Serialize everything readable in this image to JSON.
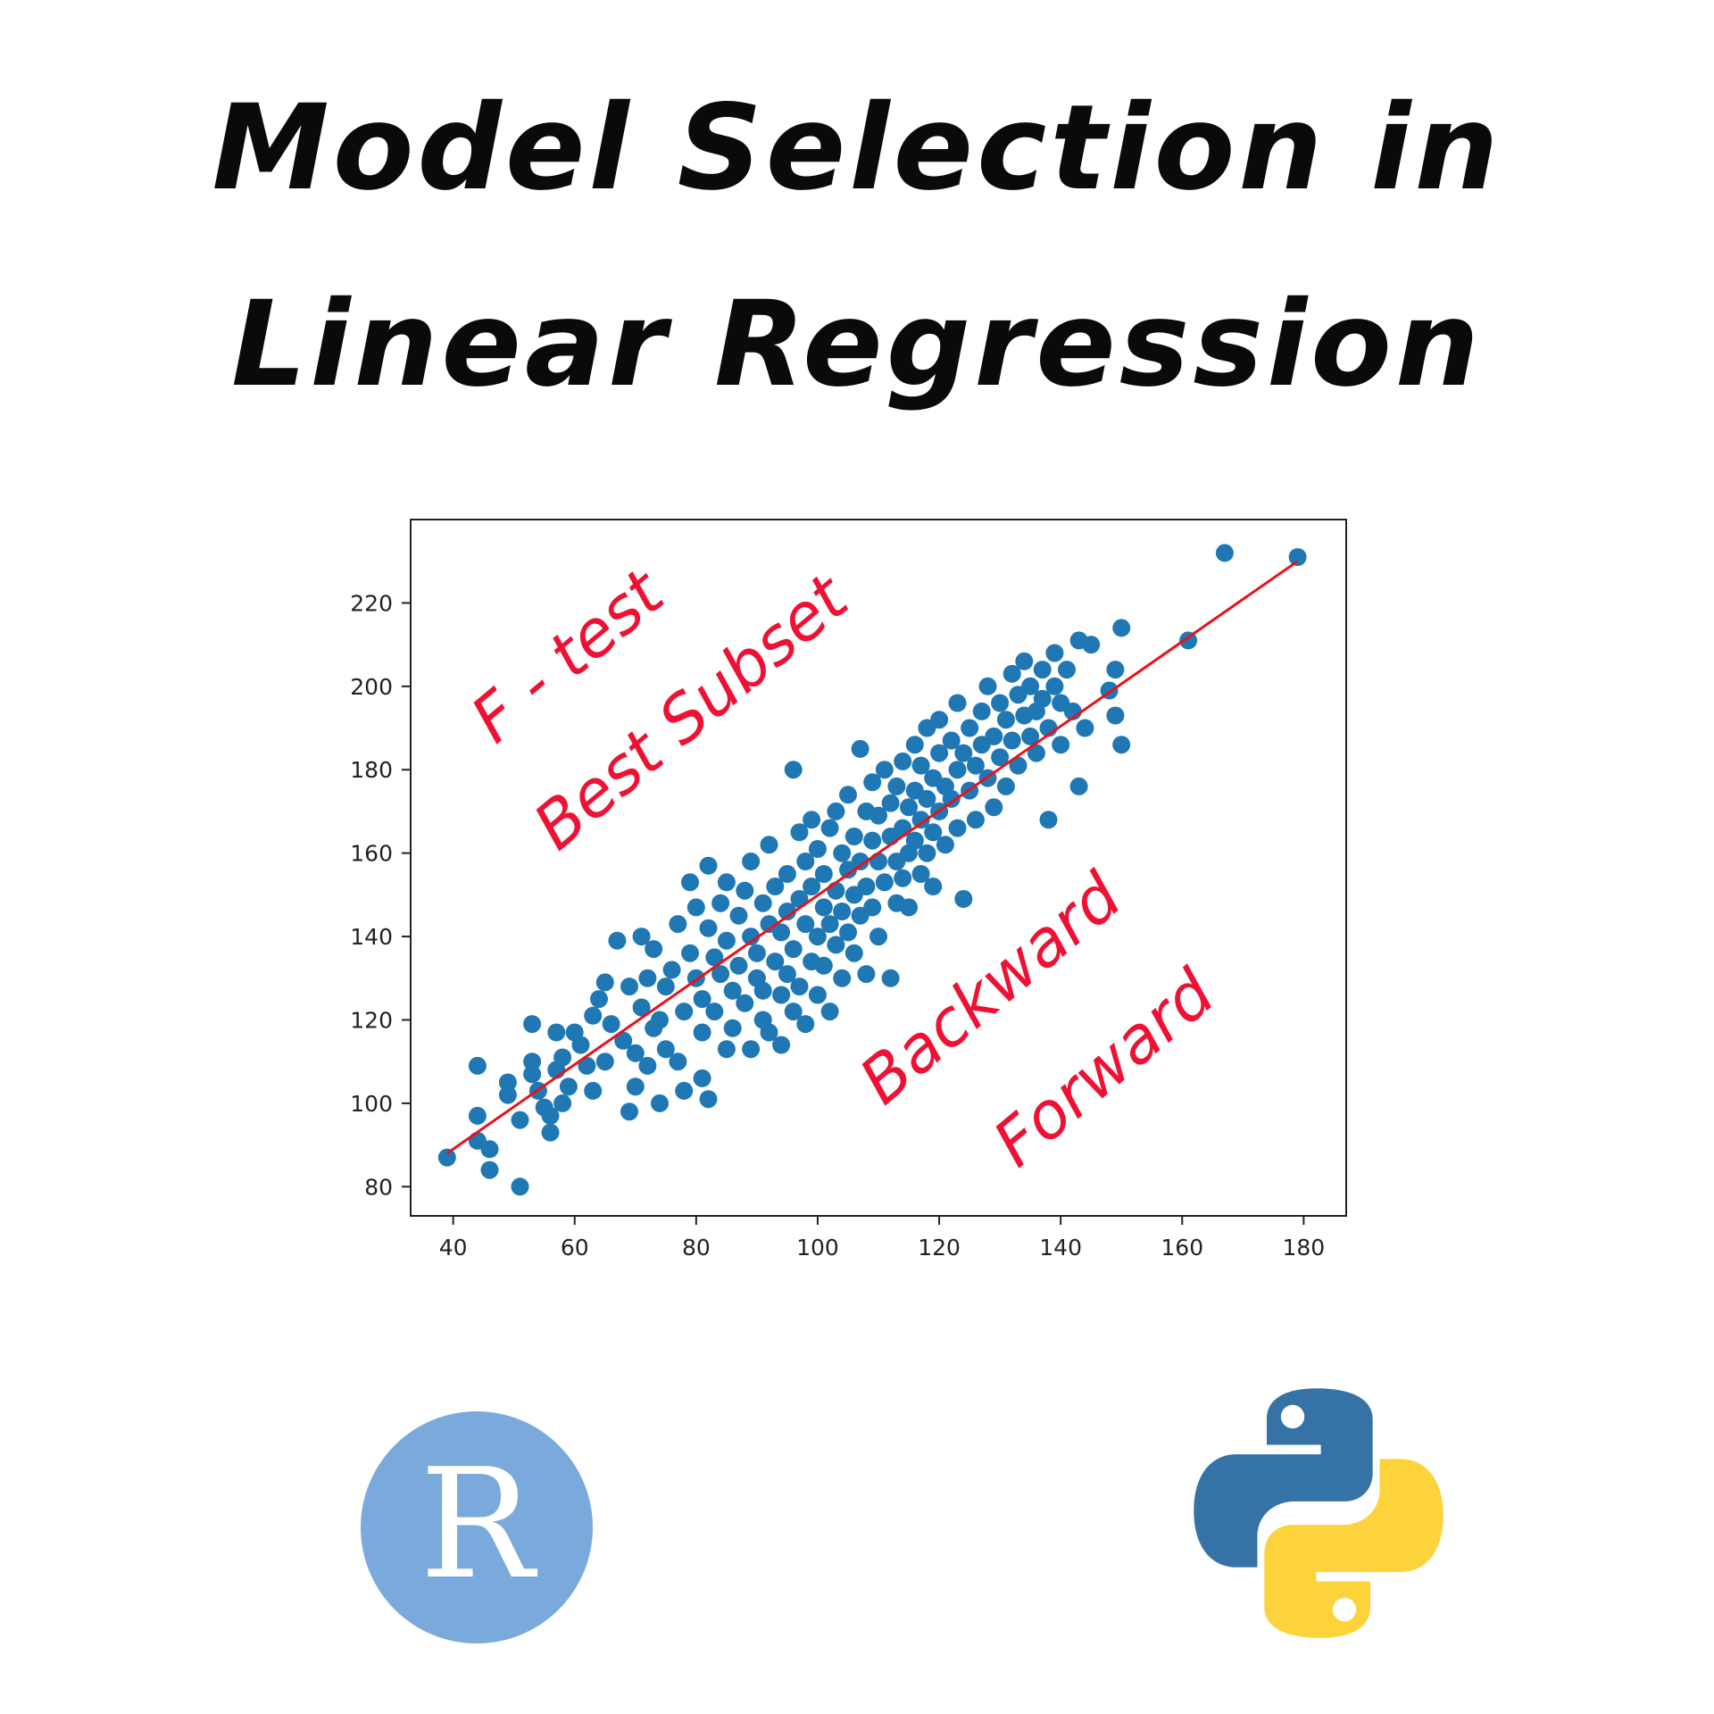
{
  "title": {
    "line1": "Model Selection in",
    "line2": "Linear Regression"
  },
  "colors": {
    "points": "#1f77b4",
    "fit_line": "#e8131a",
    "annotation": "#ee1133",
    "r_logo_bg": "#7aa9db",
    "python_blue": "#3572a5",
    "python_yellow": "#fcd33b"
  },
  "chart_data": {
    "type": "scatter",
    "xlim": [
      33,
      187
    ],
    "ylim": [
      73,
      240
    ],
    "xticks": [
      40,
      60,
      80,
      100,
      120,
      140,
      160,
      180
    ],
    "yticks": [
      80,
      100,
      120,
      140,
      160,
      180,
      200,
      220
    ],
    "grid": false,
    "fit_line": {
      "x": [
        39,
        179
      ],
      "y": [
        88,
        230
      ]
    },
    "points": [
      [
        39,
        87
      ],
      [
        44,
        109
      ],
      [
        44,
        97
      ],
      [
        44,
        91
      ],
      [
        46,
        89
      ],
      [
        46,
        84
      ],
      [
        49,
        105
      ],
      [
        49,
        102
      ],
      [
        51,
        96
      ],
      [
        51,
        80
      ],
      [
        53,
        119
      ],
      [
        53,
        110
      ],
      [
        53,
        107
      ],
      [
        54,
        103
      ],
      [
        55,
        99
      ],
      [
        56,
        97
      ],
      [
        56,
        93
      ],
      [
        57,
        108
      ],
      [
        57,
        117
      ],
      [
        58,
        111
      ],
      [
        58,
        100
      ],
      [
        59,
        104
      ],
      [
        60,
        117
      ],
      [
        61,
        114
      ],
      [
        62,
        109
      ],
      [
        63,
        121
      ],
      [
        63,
        103
      ],
      [
        64,
        125
      ],
      [
        65,
        129
      ],
      [
        65,
        110
      ],
      [
        66,
        119
      ],
      [
        67,
        139
      ],
      [
        68,
        115
      ],
      [
        69,
        98
      ],
      [
        69,
        128
      ],
      [
        70,
        112
      ],
      [
        70,
        104
      ],
      [
        71,
        123
      ],
      [
        71,
        140
      ],
      [
        72,
        109
      ],
      [
        72,
        130
      ],
      [
        73,
        118
      ],
      [
        73,
        137
      ],
      [
        74,
        100
      ],
      [
        74,
        120
      ],
      [
        75,
        128
      ],
      [
        75,
        113
      ],
      [
        76,
        132
      ],
      [
        77,
        110
      ],
      [
        77,
        143
      ],
      [
        78,
        103
      ],
      [
        78,
        122
      ],
      [
        79,
        153
      ],
      [
        79,
        136
      ],
      [
        80,
        147
      ],
      [
        80,
        130
      ],
      [
        81,
        106
      ],
      [
        81,
        125
      ],
      [
        81,
        117
      ],
      [
        82,
        157
      ],
      [
        82,
        142
      ],
      [
        82,
        101
      ],
      [
        83,
        135
      ],
      [
        83,
        122
      ],
      [
        84,
        148
      ],
      [
        84,
        131
      ],
      [
        85,
        113
      ],
      [
        85,
        153
      ],
      [
        85,
        139
      ],
      [
        86,
        127
      ],
      [
        86,
        118
      ],
      [
        87,
        145
      ],
      [
        87,
        133
      ],
      [
        88,
        151
      ],
      [
        88,
        124
      ],
      [
        89,
        113
      ],
      [
        89,
        140
      ],
      [
        89,
        158
      ],
      [
        90,
        130
      ],
      [
        90,
        136
      ],
      [
        91,
        148
      ],
      [
        91,
        120
      ],
      [
        91,
        127
      ],
      [
        92,
        162
      ],
      [
        92,
        143
      ],
      [
        92,
        117
      ],
      [
        93,
        134
      ],
      [
        93,
        152
      ],
      [
        94,
        126
      ],
      [
        94,
        141
      ],
      [
        94,
        114
      ],
      [
        95,
        155
      ],
      [
        95,
        146
      ],
      [
        95,
        131
      ],
      [
        96,
        122
      ],
      [
        96,
        180
      ],
      [
        96,
        137
      ],
      [
        97,
        165
      ],
      [
        97,
        149
      ],
      [
        97,
        128
      ],
      [
        98,
        143
      ],
      [
        98,
        158
      ],
      [
        98,
        119
      ],
      [
        99,
        134
      ],
      [
        99,
        152
      ],
      [
        99,
        168
      ],
      [
        100,
        140
      ],
      [
        100,
        126
      ],
      [
        100,
        161
      ],
      [
        101,
        147
      ],
      [
        101,
        155
      ],
      [
        101,
        133
      ],
      [
        102,
        166
      ],
      [
        102,
        143
      ],
      [
        102,
        122
      ],
      [
        103,
        151
      ],
      [
        103,
        138
      ],
      [
        103,
        170
      ],
      [
        104,
        160
      ],
      [
        104,
        146
      ],
      [
        104,
        130
      ],
      [
        105,
        156
      ],
      [
        105,
        174
      ],
      [
        105,
        141
      ],
      [
        106,
        164
      ],
      [
        106,
        150
      ],
      [
        106,
        136
      ],
      [
        107,
        185
      ],
      [
        107,
        158
      ],
      [
        107,
        145
      ],
      [
        108,
        170
      ],
      [
        108,
        152
      ],
      [
        108,
        131
      ],
      [
        109,
        163
      ],
      [
        109,
        177
      ],
      [
        109,
        147
      ],
      [
        110,
        158
      ],
      [
        110,
        140
      ],
      [
        110,
        169
      ],
      [
        111,
        153
      ],
      [
        111,
        180
      ],
      [
        112,
        164
      ],
      [
        112,
        172
      ],
      [
        112,
        130
      ],
      [
        113,
        158
      ],
      [
        113,
        148
      ],
      [
        113,
        176
      ],
      [
        114,
        166
      ],
      [
        114,
        182
      ],
      [
        114,
        154
      ],
      [
        115,
        171
      ],
      [
        115,
        160
      ],
      [
        115,
        147
      ],
      [
        116,
        186
      ],
      [
        116,
        175
      ],
      [
        116,
        163
      ],
      [
        117,
        168
      ],
      [
        117,
        155
      ],
      [
        117,
        181
      ],
      [
        118,
        173
      ],
      [
        118,
        190
      ],
      [
        118,
        160
      ],
      [
        119,
        178
      ],
      [
        119,
        165
      ],
      [
        119,
        152
      ],
      [
        120,
        184
      ],
      [
        120,
        170
      ],
      [
        120,
        192
      ],
      [
        121,
        176
      ],
      [
        121,
        162
      ],
      [
        122,
        187
      ],
      [
        122,
        173
      ],
      [
        123,
        196
      ],
      [
        123,
        180
      ],
      [
        123,
        166
      ],
      [
        124,
        184
      ],
      [
        124,
        149
      ],
      [
        125,
        190
      ],
      [
        125,
        175
      ],
      [
        126,
        181
      ],
      [
        126,
        168
      ],
      [
        127,
        194
      ],
      [
        127,
        186
      ],
      [
        128,
        200
      ],
      [
        128,
        178
      ],
      [
        129,
        188
      ],
      [
        129,
        171
      ],
      [
        130,
        196
      ],
      [
        130,
        183
      ],
      [
        131,
        192
      ],
      [
        131,
        176
      ],
      [
        132,
        203
      ],
      [
        132,
        187
      ],
      [
        133,
        198
      ],
      [
        133,
        181
      ],
      [
        134,
        206
      ],
      [
        134,
        193
      ],
      [
        135,
        188
      ],
      [
        135,
        200
      ],
      [
        136,
        194
      ],
      [
        136,
        184
      ],
      [
        137,
        204
      ],
      [
        137,
        197
      ],
      [
        138,
        190
      ],
      [
        138,
        168
      ],
      [
        139,
        208
      ],
      [
        139,
        200
      ],
      [
        140,
        196
      ],
      [
        140,
        186
      ],
      [
        141,
        204
      ],
      [
        142,
        194
      ],
      [
        143,
        211
      ],
      [
        143,
        176
      ],
      [
        144,
        190
      ],
      [
        145,
        210
      ],
      [
        148,
        199
      ],
      [
        149,
        204
      ],
      [
        149,
        193
      ],
      [
        150,
        214
      ],
      [
        150,
        186
      ],
      [
        161,
        211
      ],
      [
        167,
        232
      ],
      [
        179,
        231
      ]
    ]
  },
  "annotations": {
    "ftest": "F - test",
    "best_subset": "Best Subset",
    "backward": "Backward",
    "forward": "Forward"
  },
  "logos": {
    "r_letter": "R",
    "python": "python-logo-icon"
  }
}
